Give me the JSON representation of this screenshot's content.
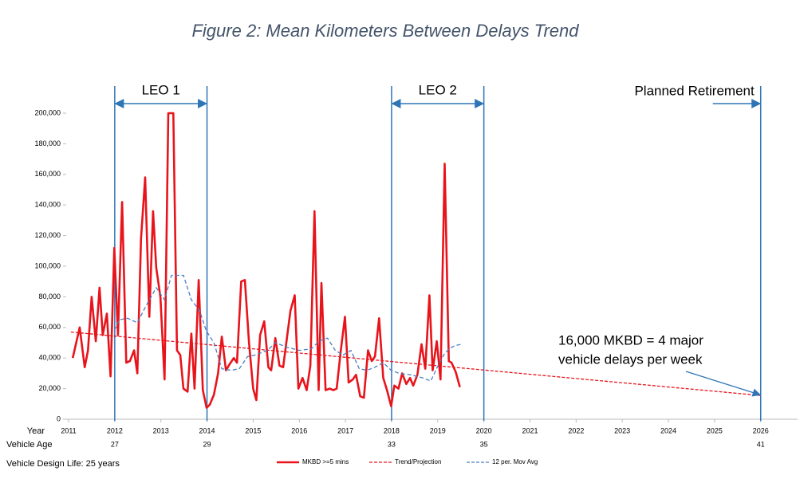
{
  "chart_data": {
    "type": "line",
    "title": "Figure 2: Mean Kilometers Between Delays Trend",
    "x_label": "Year",
    "xlim": [
      2011,
      2026.8
    ],
    "xticks": [
      2011,
      2012,
      2013,
      2014,
      2015,
      2016,
      2017,
      2018,
      2019,
      2020,
      2021,
      2022,
      2023,
      2024,
      2025,
      2026
    ],
    "ylim": [
      0,
      200000
    ],
    "yticks": [
      0,
      {
        "value": 20000,
        "label": "20,000"
      },
      {
        "value": 40000,
        "label": "40,000"
      },
      {
        "value": 60000,
        "label": "60,000"
      },
      {
        "value": 80000,
        "label": "80,000"
      },
      {
        "value": 100000,
        "label": "100,000"
      },
      {
        "value": 120000,
        "label": "120,000"
      },
      {
        "value": 140000,
        "label": "140,000"
      },
      {
        "value": 160000,
        "label": "160,000"
      },
      {
        "value": 180000,
        "label": "180,000"
      },
      {
        "value": 200000,
        "label": "200,000"
      }
    ],
    "series": [
      {
        "name": "MKBD >=5 mins",
        "color": "#e8141b",
        "style": "solid",
        "x": [
          2011.09,
          2011.24,
          2011.35,
          2011.42,
          2011.5,
          2011.59,
          2011.67,
          2011.74,
          2011.83,
          2011.91,
          2011.99,
          2012.07,
          2012.16,
          2012.25,
          2012.33,
          2012.42,
          2012.49,
          2012.57,
          2012.66,
          2012.75,
          2012.83,
          2012.9,
          2012.99,
          2013.08,
          2013.16,
          2013.27,
          2013.35,
          2013.42,
          2013.49,
          2013.58,
          2013.66,
          2013.73,
          2013.82,
          2013.91,
          2013.99,
          2014.06,
          2014.15,
          2014.24,
          2014.32,
          2014.41,
          2014.49,
          2014.58,
          2014.65,
          2014.74,
          2014.82,
          2014.91,
          2015.0,
          2015.07,
          2015.15,
          2015.24,
          2015.33,
          2015.39,
          2015.48,
          2015.57,
          2015.65,
          2015.74,
          2015.81,
          2015.9,
          2015.98,
          2016.07,
          2016.16,
          2016.24,
          2016.33,
          2016.42,
          2016.48,
          2016.57,
          2016.66,
          2016.74,
          2016.81,
          2016.9,
          2016.99,
          2017.07,
          2017.16,
          2017.23,
          2017.32,
          2017.4,
          2017.49,
          2017.57,
          2017.64,
          2017.73,
          2017.82,
          2017.9,
          2017.99,
          2018.06,
          2018.15,
          2018.23,
          2018.32,
          2018.4,
          2018.47,
          2018.56,
          2018.65,
          2018.73,
          2018.82,
          2018.89,
          2018.98,
          2019.06,
          2019.15,
          2019.24,
          2019.3,
          2019.39,
          2019.48
        ],
        "values": [
          40000,
          60000,
          34000,
          45000,
          80000,
          51000,
          86000,
          55000,
          69000,
          28000,
          112000,
          55000,
          142000,
          37000,
          38000,
          45000,
          30000,
          118000,
          158000,
          67000,
          136000,
          99000,
          80000,
          26000,
          200000,
          200000,
          45000,
          42000,
          20000,
          18000,
          56000,
          20000,
          91000,
          19000,
          7500,
          9500,
          16000,
          30000,
          54000,
          32000,
          36000,
          40000,
          37000,
          90000,
          91000,
          50000,
          20000,
          12500,
          55000,
          64000,
          34000,
          32000,
          53000,
          35000,
          34000,
          55000,
          71000,
          81000,
          20000,
          27000,
          19000,
          35000,
          136000,
          19000,
          89000,
          19000,
          20000,
          19000,
          20000,
          45000,
          67000,
          24000,
          26000,
          29000,
          15000,
          14000,
          45000,
          38000,
          41000,
          66000,
          27000,
          19000,
          8500,
          22000,
          20000,
          30000,
          23000,
          27000,
          22000,
          29000,
          49000,
          33000,
          81000,
          32000,
          51000,
          26000,
          167000,
          38000,
          37000,
          31000,
          21000
        ]
      },
      {
        "name": "Trend/Projection",
        "color": "#e8141b",
        "style": "dashed",
        "x": [
          2011.05,
          2026
        ],
        "values": [
          57000,
          15500
        ]
      },
      {
        "name": "12 per. Mov Avg",
        "color": "#4a7fc1",
        "style": "dashed",
        "x": [
          2011.99,
          2012.1,
          2012.28,
          2012.49,
          2012.66,
          2012.9,
          2013.08,
          2013.23,
          2013.49,
          2013.66,
          2013.84,
          2013.98,
          2014.15,
          2014.32,
          2014.53,
          2014.7,
          2014.88,
          2015.05,
          2015.31,
          2015.48,
          2015.74,
          2016.0,
          2016.26,
          2016.43,
          2016.61,
          2016.78,
          2016.95,
          2017.12,
          2017.3,
          2017.47,
          2017.64,
          2017.82,
          2017.99,
          2018.16,
          2018.42,
          2018.68,
          2018.85,
          2018.99,
          2019.13,
          2019.24,
          2019.37,
          2019.51
        ],
        "values": [
          58000,
          65000,
          66000,
          63000,
          73000,
          86000,
          78000,
          94000,
          94000,
          78000,
          71000,
          58000,
          50000,
          33000,
          32000,
          33000,
          41000,
          42000,
          45000,
          50000,
          47000,
          45000,
          46000,
          51000,
          53000,
          45000,
          42000,
          45000,
          33000,
          32000,
          34000,
          37000,
          32000,
          30000,
          29000,
          27000,
          25000,
          34000,
          42000,
          46000,
          48000,
          49000
        ]
      }
    ],
    "spans": [
      {
        "label": "LEO 1",
        "start": 2012,
        "end": 2014
      },
      {
        "label": "LEO 2",
        "start": 2018,
        "end": 2020
      }
    ],
    "retirement": {
      "label": "Planned Retirement",
      "x": 2026
    },
    "vehicle_age": {
      "label": "Vehicle Age",
      "x": [
        2012,
        2014,
        2018,
        2020,
        2026
      ],
      "values": [
        27,
        29,
        33,
        35,
        41
      ]
    },
    "callout": {
      "lines": [
        "16,000 MKBD = 4 major",
        "vehicle delays per week"
      ],
      "x": 2026,
      "y": 16000
    },
    "note": "Vehicle Design Life: 25 years"
  }
}
